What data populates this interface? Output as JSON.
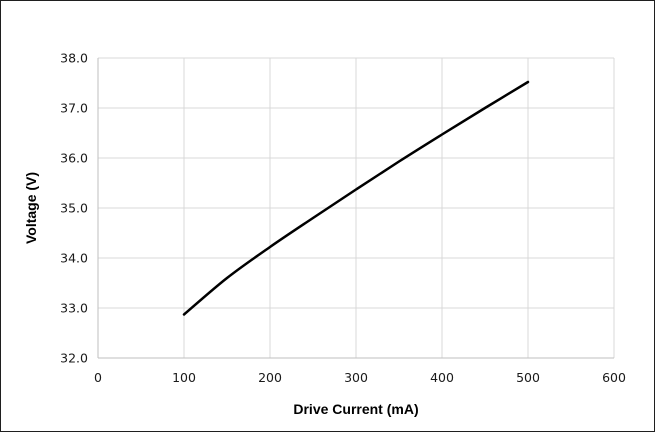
{
  "chart_data": {
    "type": "line",
    "title": "",
    "xlabel": "Drive Current (mA)",
    "ylabel": "Voltage (V)",
    "xlim": [
      0,
      600
    ],
    "ylim": [
      32.0,
      38.0
    ],
    "x_ticks": [
      0,
      100,
      200,
      300,
      400,
      500,
      600
    ],
    "y_ticks": [
      32.0,
      33.0,
      34.0,
      35.0,
      36.0,
      37.0,
      38.0
    ],
    "grid": true,
    "legend": "none",
    "series": [
      {
        "color": "#000000",
        "x": [
          100,
          150,
          200,
          250,
          300,
          350,
          400,
          450,
          500
        ],
        "y": [
          32.87,
          33.6,
          34.22,
          34.8,
          35.37,
          35.93,
          36.47,
          37.0,
          37.52
        ]
      }
    ]
  }
}
